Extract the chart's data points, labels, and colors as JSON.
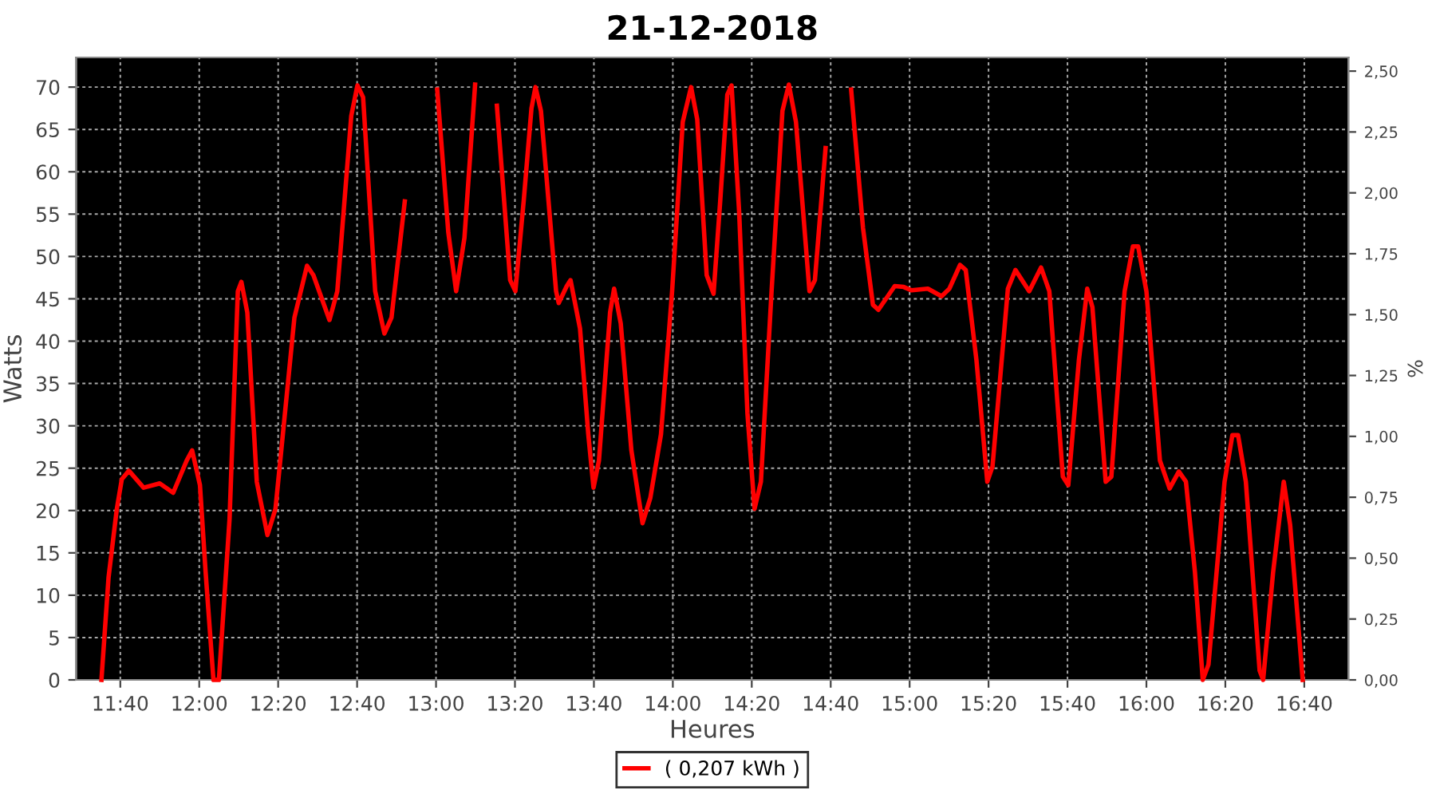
{
  "chart_data": {
    "type": "line",
    "title": "21-12-2018",
    "xlabel": "Heures",
    "ylabel": "Watts",
    "y2label": "%",
    "xlim": [
      11.48,
      16.853
    ],
    "xticks": [
      {
        "value": 11.6667,
        "label": "11:40"
      },
      {
        "value": 12,
        "label": "12:00"
      },
      {
        "value": 12.3333,
        "label": "12:20"
      },
      {
        "value": 12.6667,
        "label": "12:40"
      },
      {
        "value": 13,
        "label": "13:00"
      },
      {
        "value": 13.3333,
        "label": "13:20"
      },
      {
        "value": 13.6667,
        "label": "13:40"
      },
      {
        "value": 14,
        "label": "14:00"
      },
      {
        "value": 14.3333,
        "label": "14:20"
      },
      {
        "value": 14.6667,
        "label": "14:40"
      },
      {
        "value": 15,
        "label": "15:00"
      },
      {
        "value": 15.3333,
        "label": "15:20"
      },
      {
        "value": 15.6667,
        "label": "15:40"
      },
      {
        "value": 16,
        "label": "16:00"
      },
      {
        "value": 16.3333,
        "label": "16:20"
      },
      {
        "value": 16.6667,
        "label": "16:40"
      }
    ],
    "ylim": [
      0,
      73.5
    ],
    "yticks": [
      0,
      5,
      10,
      15,
      20,
      25,
      30,
      35,
      40,
      45,
      50,
      55,
      60,
      65,
      70
    ],
    "y2lim": [
      0,
      2.556
    ],
    "y2ticks": [
      {
        "value": 0,
        "label": "0,00"
      },
      {
        "value": 0.25,
        "label": "0,25"
      },
      {
        "value": 0.5,
        "label": "0,50"
      },
      {
        "value": 0.75,
        "label": "0,75"
      },
      {
        "value": 1,
        "label": "1,00"
      },
      {
        "value": 1.25,
        "label": "1,25"
      },
      {
        "value": 1.5,
        "label": "1,50"
      },
      {
        "value": 1.75,
        "label": "1,75"
      },
      {
        "value": 2,
        "label": "2,00"
      },
      {
        "value": 2.25,
        "label": "2,25"
      },
      {
        "value": 2.5,
        "label": "2,50"
      }
    ],
    "grid": true,
    "legend": "bottom",
    "line_style": "solid",
    "marker": "none",
    "series": [
      {
        "name": "( 0,207 kWh )",
        "color": "#ff0000",
        "x": [
          11.587,
          11.617,
          11.652,
          11.673,
          11.703,
          11.765,
          11.833,
          11.89,
          11.947,
          11.97,
          12.003,
          12.027,
          12.06,
          12.083,
          12.128,
          12.163,
          12.178,
          12.203,
          12.243,
          12.288,
          12.322,
          12.402,
          12.455,
          12.482,
          12.55,
          12.583,
          12.642,
          12.668,
          12.692,
          12.743,
          12.782,
          12.812,
          12.868,
          12.937,
          12.983,
          13.005,
          13.052,
          13.085,
          13.12,
          13.165,
          13.188,
          13.233,
          13.257,
          13.313,
          13.335,
          13.37,
          13.403,
          13.42,
          13.443,
          13.507,
          13.518,
          13.552,
          13.568,
          13.608,
          13.643,
          13.665,
          13.688,
          13.735,
          13.752,
          13.78,
          13.825,
          13.872,
          13.905,
          13.95,
          13.997,
          14.042,
          14.077,
          14.103,
          14.143,
          14.172,
          14.2,
          14.23,
          14.248,
          14.28,
          14.315,
          14.345,
          14.372,
          14.417,
          14.463,
          14.49,
          14.52,
          14.577,
          14.6,
          14.645,
          14.678,
          14.725,
          14.753,
          14.803,
          14.845,
          14.868,
          14.937,
          14.975,
          15.008,
          15.077,
          15.135,
          15.168,
          15.213,
          15.237,
          15.282,
          15.328,
          15.35,
          15.415,
          15.447,
          15.505,
          15.555,
          15.59,
          15.647,
          15.67,
          15.715,
          15.75,
          15.772,
          15.828,
          15.852,
          15.908,
          15.943,
          15.965,
          16.0,
          16.057,
          16.098,
          16.137,
          16.167,
          16.205,
          16.238,
          16.262,
          16.33,
          16.363,
          16.387,
          16.42,
          16.478,
          16.493,
          16.535,
          16.58,
          16.607,
          16.66
        ],
        "values": [
          0,
          12.1,
          20.2,
          23.7,
          24.7,
          22.7,
          23.2,
          22.1,
          25.9,
          27.1,
          23.0,
          12.7,
          0,
          0,
          19.0,
          45.9,
          47.0,
          43.4,
          23.4,
          17.1,
          20.2,
          42.8,
          48.9,
          47.8,
          42.5,
          45.9,
          66.6,
          70.2,
          68.8,
          45.9,
          40.9,
          42.8,
          56.5,
          null,
          null,
          69.7,
          52.8,
          45.9,
          52.2,
          70.3,
          null,
          null,
          67.8,
          47.2,
          45.9,
          56.5,
          67.5,
          70.0,
          67.2,
          45.9,
          44.5,
          46.5,
          47.2,
          41.5,
          29.0,
          22.7,
          25.9,
          43.4,
          46.2,
          42.1,
          27.1,
          18.5,
          21.5,
          29.0,
          45.9,
          65.9,
          70.0,
          66.2,
          47.8,
          45.6,
          56.5,
          69.1,
          70.2,
          55.3,
          31.5,
          20.2,
          23.4,
          45.9,
          67.2,
          70.3,
          65.9,
          45.9,
          47.2,
          62.8,
          null,
          null,
          69.7,
          53.4,
          44.3,
          43.7,
          46.5,
          46.4,
          46.0,
          46.2,
          45.3,
          46.2,
          49.0,
          48.4,
          37.8,
          23.4,
          25.2,
          46.2,
          48.4,
          45.9,
          48.7,
          45.9,
          24.0,
          23.0,
          37.8,
          46.2,
          44.0,
          23.4,
          24.0,
          45.9,
          51.2,
          51.2,
          45.9,
          25.9,
          22.6,
          24.6,
          23.4,
          12.7,
          0,
          1.8,
          23.4,
          28.9,
          28.9,
          23.4,
          1.1,
          0,
          12.7,
          23.4,
          18.3,
          0
        ]
      }
    ]
  }
}
